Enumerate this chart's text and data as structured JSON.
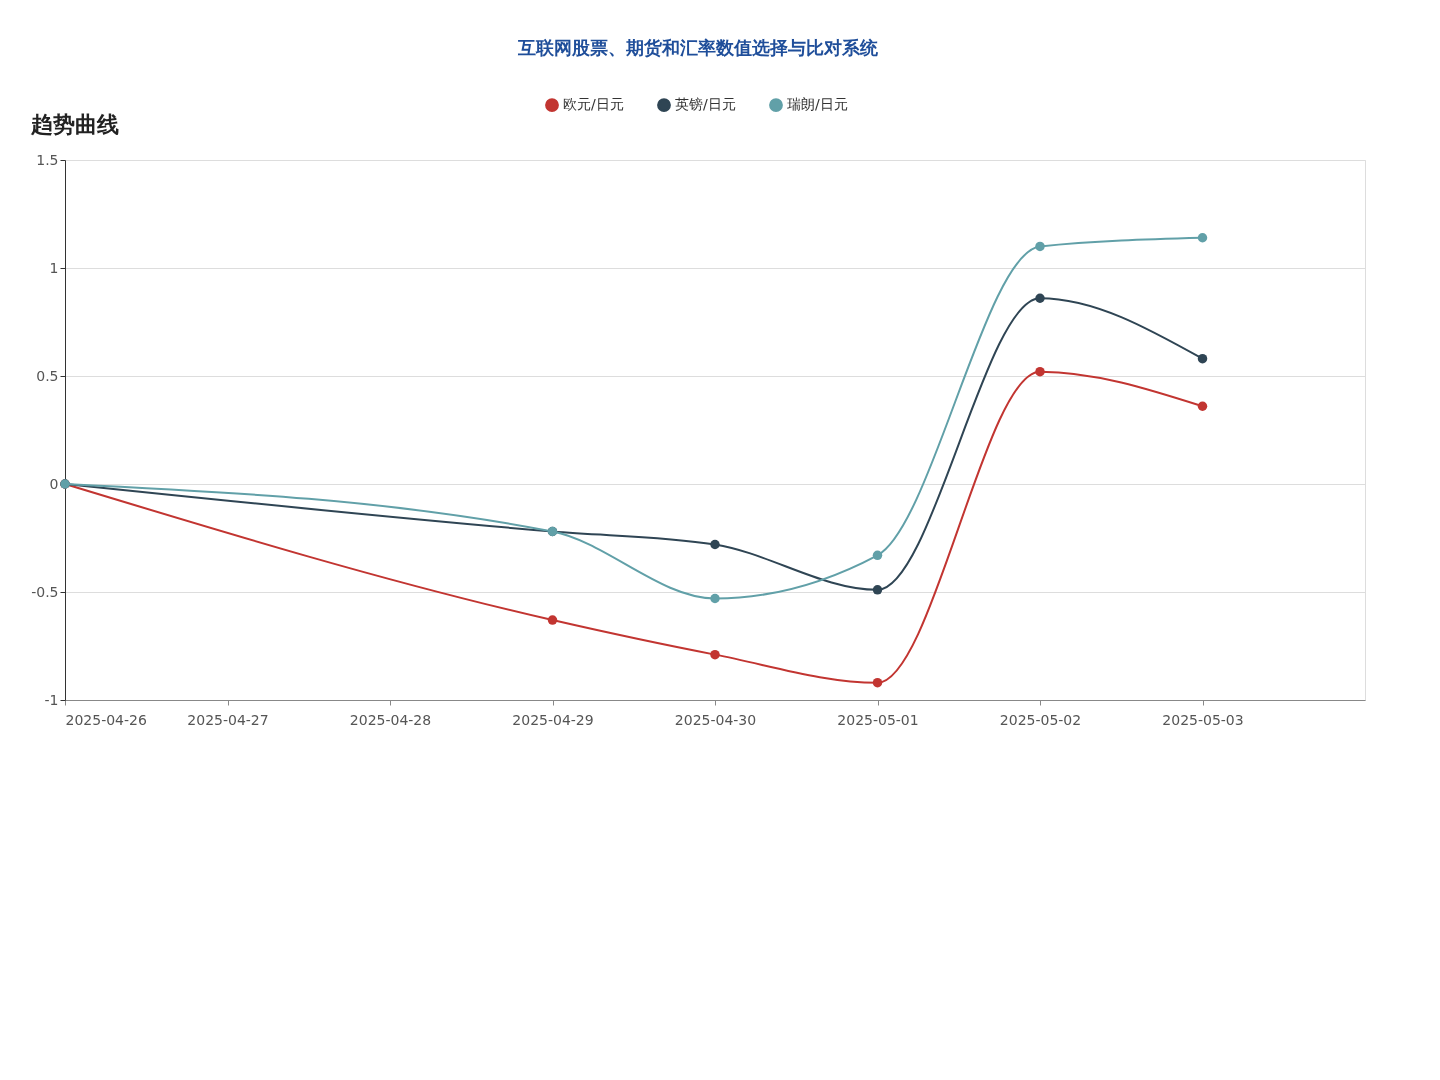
{
  "chart_data": {
    "type": "line",
    "title": "趋势曲线",
    "annotations": [
      "互联网股票、期货和汇率数值选择与比对系统"
    ],
    "x": [
      "2025-04-26",
      "2025-04-29",
      "2025-04-30",
      "2025-05-01",
      "2025-05-02",
      "2025-05-03"
    ],
    "series": [
      {
        "name": "欧元/日元",
        "color": "#c23531",
        "values": [
          0,
          -0.63,
          -0.79,
          -0.92,
          0.52,
          0.36
        ]
      },
      {
        "name": "英镑/日元",
        "color": "#2f4554",
        "values": [
          0,
          -0.22,
          -0.28,
          -0.49,
          0.86,
          0.58
        ]
      },
      {
        "name": "瑞朗/日元",
        "color": "#61a0a8",
        "values": [
          0,
          -0.22,
          -0.53,
          -0.33,
          1.1,
          1.14
        ]
      }
    ],
    "xlim": [
      "2025-04-26",
      "2025-05-04"
    ],
    "xticks": [
      "2025-04-26",
      "2025-04-27",
      "2025-04-28",
      "2025-04-29",
      "2025-04-30",
      "2025-05-01",
      "2025-05-02",
      "2025-05-03"
    ],
    "ylim": [
      -1,
      1.5
    ],
    "yticks": [
      -1,
      -0.5,
      0,
      0.5,
      1,
      1.5
    ],
    "grid": "y",
    "legend": "top",
    "marker": "circle",
    "line_style": "solid"
  }
}
